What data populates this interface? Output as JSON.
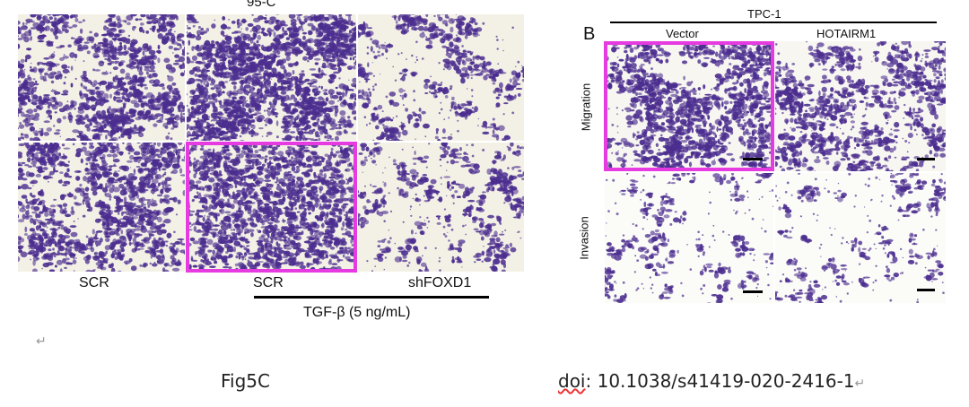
{
  "panelA": {
    "title": "95-C",
    "col_labels": [
      "SCR",
      "SCR",
      "shFOXD1"
    ],
    "treatment_label": "TGF-β (5 ng/mL)"
  },
  "panelB": {
    "letter": "B",
    "cell_line": "TPC-1",
    "col_labels": [
      "Vector",
      "HOTAIRM1"
    ],
    "row_labels": [
      "Migration",
      "Invasion"
    ]
  },
  "footer": {
    "fig_label": "Fig5C",
    "doi_prefix": "doi",
    "doi_rest": ": 10.1038/s41419-020-2416-1",
    "return_mark": "↵"
  },
  "colors": {
    "highlight": "#e63be0",
    "stain": "#4b2d8f",
    "background_tile": "#f3f1e6"
  }
}
